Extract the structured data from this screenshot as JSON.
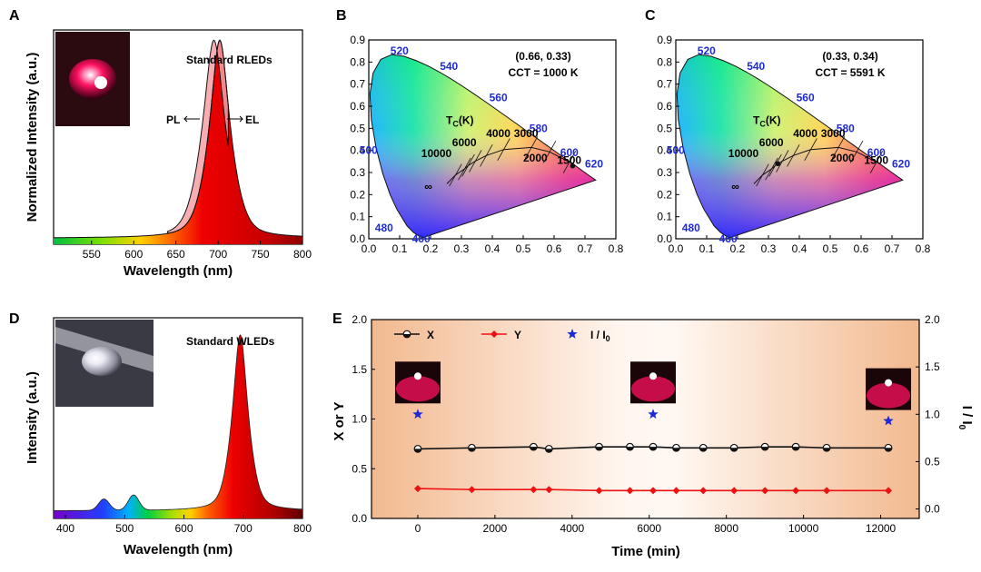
{
  "figure": {
    "panel_letters": [
      "A",
      "B",
      "C",
      "D",
      "E"
    ]
  },
  "colors": {
    "blue_label": "#1f2bd1",
    "red_series": "#ee1111",
    "black_series": "#111111",
    "star": "#1a2ad6"
  },
  "chart_data": [
    {
      "panel": "A",
      "type": "area",
      "title": "Standard RLEDs",
      "xlabel": "Wavelength (nm)",
      "ylabel": "Normalized Intensity (a.u.)",
      "xlim": [
        505,
        800
      ],
      "ylim": [
        0,
        1.05
      ],
      "xticks": [
        550,
        600,
        650,
        700,
        750,
        800
      ],
      "series": [
        {
          "name": "PL",
          "peak_nm": 695
        },
        {
          "name": "EL",
          "peak_nm": 702
        }
      ],
      "annotations": {
        "pl": "PL",
        "el": "EL"
      },
      "inset_photo": "red LED photo"
    },
    {
      "panel": "B",
      "type": "scatter",
      "chart_kind": "CIE 1931 chromaticity diagram",
      "xlim": [
        0,
        0.8
      ],
      "ylim": [
        0,
        0.9
      ],
      "xticks": [
        "0.0",
        "0.1",
        "0.2",
        "0.3",
        "0.4",
        "0.5",
        "0.6",
        "0.7",
        "0.8"
      ],
      "yticks": [
        "0.0",
        "0.1",
        "0.2",
        "0.3",
        "0.4",
        "0.5",
        "0.6",
        "0.7",
        "0.8",
        "0.9"
      ],
      "coordinate_label": "(0.66, 0.33)",
      "cct_label": "CCT = 1000 K",
      "point": {
        "x": 0.66,
        "y": 0.33
      },
      "tc_label": "T",
      "tc_sub": "C",
      "tc_unit": "(K)",
      "wavelength_labels": [
        "460",
        "480",
        "500",
        "520",
        "540",
        "560",
        "580",
        "600",
        "620"
      ],
      "cct_labels": [
        "10000",
        "6000",
        "4000",
        "3000",
        "2000",
        "1500",
        "∞"
      ]
    },
    {
      "panel": "C",
      "type": "scatter",
      "chart_kind": "CIE 1931 chromaticity diagram",
      "xlim": [
        0,
        0.8
      ],
      "ylim": [
        0,
        0.9
      ],
      "xticks": [
        "0.0",
        "0.1",
        "0.2",
        "0.3",
        "0.4",
        "0.5",
        "0.6",
        "0.7",
        "0.8"
      ],
      "yticks": [
        "0.0",
        "0.1",
        "0.2",
        "0.3",
        "0.4",
        "0.5",
        "0.6",
        "0.7",
        "0.8",
        "0.9"
      ],
      "coordinate_label": "(0.33, 0.34)",
      "cct_label": "CCT = 5591 K",
      "point": {
        "x": 0.33,
        "y": 0.34
      },
      "tc_label": "T",
      "tc_sub": "C",
      "tc_unit": "(K)",
      "wavelength_labels": [
        "460",
        "480",
        "500",
        "520",
        "540",
        "560",
        "580",
        "600",
        "620"
      ],
      "cct_labels": [
        "10000",
        "6000",
        "4000",
        "3000",
        "2000",
        "1500",
        "∞"
      ]
    },
    {
      "panel": "D",
      "type": "area",
      "title": "Standard WLEDs",
      "xlabel": "Wavelength (nm)",
      "ylabel": "Intensity (a.u.)",
      "xlim": [
        380,
        800
      ],
      "ylim": [
        0,
        1.05
      ],
      "xticks": [
        400,
        500,
        600,
        700,
        800
      ],
      "peaks_nm": [
        465,
        515,
        695
      ],
      "inset_photo": "white LED photo"
    },
    {
      "panel": "E",
      "type": "line",
      "xlabel": "Time (min)",
      "ylabel_left": "X or Y",
      "ylabel_right_main": "I / I",
      "ylabel_right_sub": "0",
      "xlim": [
        -1200,
        13000
      ],
      "ylim": [
        0,
        2.0
      ],
      "y2lim": [
        -0.1,
        2.0
      ],
      "xticks": [
        0,
        2000,
        4000,
        6000,
        8000,
        10000,
        12000
      ],
      "yticks": [
        "0.0",
        "0.5",
        "1.0",
        "1.5",
        "2.0"
      ],
      "y2ticks": [
        "0.0",
        "0.5",
        "1.0",
        "1.5",
        "2.0"
      ],
      "legend": [
        {
          "name": "X",
          "marker": "half-filled circle"
        },
        {
          "name": "Y",
          "marker": "diamond"
        },
        {
          "name": "I / I",
          "sub": "0",
          "marker": "star"
        }
      ],
      "series": [
        {
          "name": "X",
          "x": [
            0,
            1400,
            3000,
            3400,
            4700,
            5500,
            6100,
            6700,
            7400,
            8200,
            9000,
            9800,
            10600,
            12200
          ],
          "y": [
            0.7,
            0.71,
            0.72,
            0.7,
            0.72,
            0.72,
            0.72,
            0.71,
            0.71,
            0.71,
            0.72,
            0.72,
            0.71,
            0.71
          ]
        },
        {
          "name": "Y",
          "x": [
            0,
            1400,
            3000,
            3400,
            4700,
            5500,
            6100,
            6700,
            7400,
            8200,
            9000,
            9800,
            10600,
            12200
          ],
          "y": [
            0.3,
            0.29,
            0.29,
            0.29,
            0.28,
            0.28,
            0.28,
            0.28,
            0.28,
            0.28,
            0.28,
            0.28,
            0.28,
            0.28
          ]
        },
        {
          "name": "I / I0",
          "x": [
            0,
            6100,
            12200
          ],
          "y2": [
            1.0,
            1.0,
            0.93
          ]
        }
      ],
      "inset_photos": [
        "red LED at 0 min",
        "red LED at 6100 min",
        "red LED at 12200 min"
      ]
    }
  ]
}
